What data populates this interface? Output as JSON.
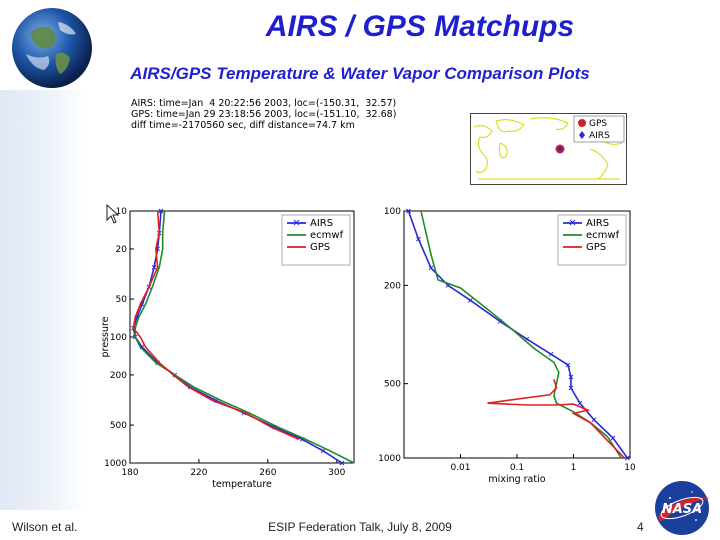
{
  "slide": {
    "title": "AIRS / GPS Matchups",
    "subtitle": "AIRS/GPS Temperature & Water Vapor Comparison Plots",
    "footer_left": "Wilson et al.",
    "footer_center": "ESIP Federation Talk, July 8, 2009",
    "page_number": "4"
  },
  "matchup_info": {
    "airs_line": "AIRS: time=Jan  4 20:22:56 2003, loc=(-150.31,  32.57)",
    "gps_line": "GPS: time=Jan 29 23:18:56 2003, loc=(-151.10,  32.68)",
    "diff_line": "diff time=-2170560 sec, diff distance=74.7 km"
  },
  "location_map": {
    "legend": [
      "GPS",
      "AIRS"
    ],
    "colors": {
      "GPS": "#d42020",
      "AIRS": "#2a2ad8"
    }
  },
  "chart_data": [
    {
      "type": "line",
      "xlabel": "temperature",
      "ylabel": "pressure",
      "y_scale": "log",
      "y_inverted": true,
      "xlim": [
        180,
        310
      ],
      "ylim": [
        1000,
        10
      ],
      "x_ticks": [
        180,
        220,
        260,
        300
      ],
      "y_ticks": [
        10,
        20,
        50,
        100,
        200,
        500,
        1000
      ],
      "legend_position": "top-right",
      "series": [
        {
          "name": "AIRS",
          "color": "#2a2ad8",
          "marker": "x",
          "points": [
            [
              198,
              10
            ],
            [
              197,
              15
            ],
            [
              196,
              20
            ],
            [
              194,
              28
            ],
            [
              191,
              40
            ],
            [
              187,
              55
            ],
            [
              184,
              70
            ],
            [
              182,
              85
            ],
            [
              183,
              100
            ],
            [
              187,
              120
            ],
            [
              196,
              160
            ],
            [
              206,
              200
            ],
            [
              215,
              250
            ],
            [
              230,
              320
            ],
            [
              246,
              400
            ],
            [
              264,
              520
            ],
            [
              280,
              650
            ],
            [
              292,
              800
            ],
            [
              303,
              1000
            ]
          ]
        },
        {
          "name": "ecmwf",
          "color": "#1f8c2a",
          "points": [
            [
              200,
              10
            ],
            [
              199,
              15
            ],
            [
              199,
              20
            ],
            [
              197,
              28
            ],
            [
              193,
              40
            ],
            [
              189,
              55
            ],
            [
              185,
              70
            ],
            [
              183,
              85
            ],
            [
              183,
              100
            ],
            [
              186,
              120
            ],
            [
              195,
              160
            ],
            [
              206,
              200
            ],
            [
              217,
              250
            ],
            [
              233,
              320
            ],
            [
              249,
              400
            ],
            [
              266,
              520
            ],
            [
              282,
              650
            ],
            [
              296,
              800
            ],
            [
              310,
              1000
            ]
          ]
        },
        {
          "name": "GPS",
          "color": "#e02020",
          "points": [
            [
              196,
              10
            ],
            [
              197,
              15
            ],
            [
              195,
              20
            ],
            [
              196,
              28
            ],
            [
              191,
              40
            ],
            [
              186,
              55
            ],
            [
              183,
              70
            ],
            [
              182,
              85
            ],
            [
              186,
              100
            ],
            [
              189,
              120
            ],
            [
              197,
              160
            ],
            [
              205,
              200
            ],
            [
              214,
              250
            ],
            [
              228,
              320
            ],
            [
              247,
              400
            ],
            [
              262,
              520
            ],
            [
              278,
              650
            ]
          ]
        }
      ]
    },
    {
      "type": "line",
      "xlabel": "mixing ratio",
      "y_scale": "log",
      "x_scale": "log",
      "y_inverted": true,
      "xlim": [
        0.001,
        10
      ],
      "ylim": [
        1000,
        100
      ],
      "x_ticks": [
        0.01,
        0.1,
        1,
        10
      ],
      "x_tick_labels": [
        "0.01",
        "0.1",
        "1",
        "10"
      ],
      "y_ticks": [
        100,
        200,
        500,
        1000
      ],
      "legend_position": "top-right",
      "series": [
        {
          "name": "AIRS",
          "color": "#2a2ad8",
          "marker": "x",
          "points": [
            [
              0.0012,
              100
            ],
            [
              0.0018,
              130
            ],
            [
              0.003,
              170
            ],
            [
              0.006,
              200
            ],
            [
              0.015,
              230
            ],
            [
              0.05,
              280
            ],
            [
              0.15,
              330
            ],
            [
              0.4,
              380
            ],
            [
              0.8,
              420
            ],
            [
              0.9,
              470
            ],
            [
              0.9,
              520
            ],
            [
              1.3,
              600
            ],
            [
              2.3,
              700
            ],
            [
              5,
              830
            ],
            [
              9,
              1000
            ]
          ]
        },
        {
          "name": "ecmwf",
          "color": "#1f8c2a",
          "points": [
            [
              0.002,
              100
            ],
            [
              0.003,
              150
            ],
            [
              0.004,
              190
            ],
            [
              0.01,
              205
            ],
            [
              0.03,
              250
            ],
            [
              0.08,
              300
            ],
            [
              0.2,
              360
            ],
            [
              0.45,
              410
            ],
            [
              0.55,
              450
            ],
            [
              0.5,
              500
            ],
            [
              0.45,
              560
            ],
            [
              0.5,
              600
            ],
            [
              1,
              650
            ],
            [
              2,
              720
            ],
            [
              4,
              820
            ],
            [
              7,
              1000
            ]
          ]
        },
        {
          "name": "GPS",
          "color": "#e02020",
          "points": [
            [
              0.45,
              480
            ],
            [
              0.5,
              520
            ],
            [
              0.38,
              555
            ],
            [
              0.05,
              590
            ],
            [
              0.03,
              600
            ],
            [
              0.15,
              610
            ],
            [
              0.5,
              610
            ],
            [
              1,
              605
            ],
            [
              1.8,
              640
            ],
            [
              1,
              660
            ],
            [
              2,
              720
            ],
            [
              4,
              850
            ],
            [
              8,
              1000
            ]
          ]
        }
      ]
    }
  ]
}
